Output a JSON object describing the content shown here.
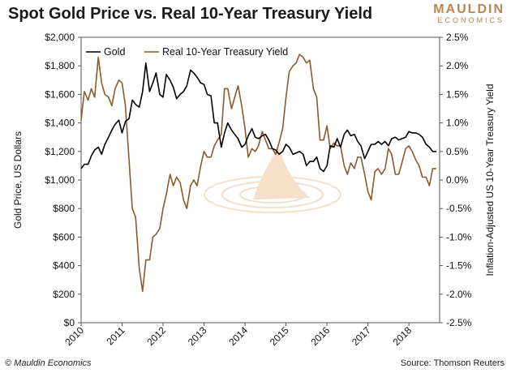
{
  "header": {
    "title": "Spot Gold Price vs. Real 10-Year Treasury Yield",
    "logo_main": "MAULDIN",
    "logo_sub": "ECONOMICS"
  },
  "footer": {
    "credit": "© Mauldin Economics",
    "source": "Source: Thomson Reuters"
  },
  "chart_data": {
    "type": "line",
    "title": "Spot Gold Price vs. Real 10-Year Treasury Yield",
    "xlabel": "",
    "ylabel": "Gold Price, US Dollars",
    "ylabel_right": "Inflation-Adjusted US 10-Year Treasury Yield",
    "xlim": [
      2010,
      2018.75
    ],
    "ylim": [
      0,
      2000
    ],
    "ylim_right": [
      -2.5,
      2.5
    ],
    "x_ticks": [
      "2010",
      "2011",
      "2012",
      "2013",
      "2014",
      "2015",
      "2016",
      "2017",
      "2018"
    ],
    "y_ticks": [
      "$0",
      "$200",
      "$400",
      "$600",
      "$800",
      "$1,000",
      "$1,200",
      "$1,400",
      "$1,600",
      "$1,800",
      "$2,000"
    ],
    "y_ticks_right": [
      "-2.5%",
      "-2.0%",
      "-1.5%",
      "-1.0%",
      "-0.5%",
      "0.0%",
      "0.5%",
      "1.0%",
      "1.5%",
      "2.0%",
      "2.5%"
    ],
    "legend_position": "top-left",
    "grid": false,
    "series": [
      {
        "name": "Gold",
        "axis": "left",
        "color": "#000000",
        "x": [
          2010.0,
          2010.08,
          2010.17,
          2010.25,
          2010.33,
          2010.42,
          2010.5,
          2010.58,
          2010.67,
          2010.75,
          2010.83,
          2010.92,
          2011.0,
          2011.08,
          2011.17,
          2011.25,
          2011.33,
          2011.42,
          2011.5,
          2011.58,
          2011.67,
          2011.75,
          2011.83,
          2011.92,
          2012.0,
          2012.08,
          2012.17,
          2012.25,
          2012.33,
          2012.42,
          2012.5,
          2012.58,
          2012.67,
          2012.75,
          2012.83,
          2012.92,
          2013.0,
          2013.08,
          2013.17,
          2013.25,
          2013.33,
          2013.42,
          2013.5,
          2013.58,
          2013.67,
          2013.75,
          2013.83,
          2013.92,
          2014.0,
          2014.08,
          2014.17,
          2014.25,
          2014.33,
          2014.42,
          2014.5,
          2014.58,
          2014.67,
          2014.75,
          2014.83,
          2014.92,
          2015.0,
          2015.08,
          2015.17,
          2015.25,
          2015.33,
          2015.42,
          2015.5,
          2015.58,
          2015.67,
          2015.75,
          2015.83,
          2015.92,
          2016.0,
          2016.08,
          2016.17,
          2016.25,
          2016.33,
          2016.42,
          2016.5,
          2016.58,
          2016.67,
          2016.75,
          2016.83,
          2016.92,
          2017.0,
          2017.08,
          2017.17,
          2017.25,
          2017.33,
          2017.42,
          2017.5,
          2017.58,
          2017.67,
          2017.75,
          2017.83,
          2017.92,
          2018.0,
          2018.08,
          2018.17,
          2018.25,
          2018.33,
          2018.42,
          2018.5,
          2018.58,
          2018.67
        ],
        "values": [
          1080,
          1110,
          1110,
          1170,
          1210,
          1230,
          1180,
          1250,
          1300,
          1350,
          1390,
          1420,
          1330,
          1410,
          1430,
          1560,
          1530,
          1510,
          1620,
          1820,
          1620,
          1680,
          1750,
          1600,
          1580,
          1740,
          1700,
          1650,
          1570,
          1600,
          1620,
          1660,
          1770,
          1750,
          1720,
          1680,
          1670,
          1600,
          1590,
          1400,
          1400,
          1230,
          1330,
          1400,
          1350,
          1320,
          1290,
          1230,
          1250,
          1310,
          1360,
          1300,
          1290,
          1310,
          1320,
          1280,
          1220,
          1210,
          1180,
          1200,
          1250,
          1230,
          1180,
          1190,
          1200,
          1180,
          1100,
          1130,
          1130,
          1160,
          1080,
          1060,
          1100,
          1240,
          1230,
          1290,
          1230,
          1320,
          1350,
          1310,
          1320,
          1270,
          1240,
          1150,
          1200,
          1250,
          1250,
          1270,
          1250,
          1270,
          1240,
          1290,
          1300,
          1280,
          1290,
          1300,
          1340,
          1330,
          1330,
          1320,
          1300,
          1250,
          1230,
          1200,
          1200
        ]
      },
      {
        "name": "Real 10-Year Treasury Yield",
        "axis": "right",
        "color": "#8b5a2b",
        "x": [
          2010.0,
          2010.08,
          2010.17,
          2010.25,
          2010.33,
          2010.42,
          2010.5,
          2010.58,
          2010.67,
          2010.75,
          2010.83,
          2010.92,
          2011.0,
          2011.08,
          2011.17,
          2011.25,
          2011.33,
          2011.42,
          2011.5,
          2011.58,
          2011.67,
          2011.75,
          2011.83,
          2011.92,
          2012.0,
          2012.08,
          2012.17,
          2012.25,
          2012.33,
          2012.42,
          2012.5,
          2012.58,
          2012.67,
          2012.75,
          2012.83,
          2012.92,
          2013.0,
          2013.08,
          2013.17,
          2013.25,
          2013.33,
          2013.42,
          2013.5,
          2013.58,
          2013.67,
          2013.75,
          2013.83,
          2013.92,
          2014.0,
          2014.08,
          2014.17,
          2014.25,
          2014.33,
          2014.42,
          2014.5,
          2014.58,
          2014.67,
          2014.75,
          2014.83,
          2014.92,
          2015.0,
          2015.08,
          2015.17,
          2015.25,
          2015.33,
          2015.42,
          2015.5,
          2015.58,
          2015.67,
          2015.75,
          2015.83,
          2015.92,
          2016.0,
          2016.08,
          2016.17,
          2016.25,
          2016.33,
          2016.42,
          2016.5,
          2016.58,
          2016.67,
          2016.75,
          2016.83,
          2016.92,
          2017.0,
          2017.08,
          2017.17,
          2017.25,
          2017.33,
          2017.42,
          2017.5,
          2017.58,
          2017.67,
          2017.75,
          2017.83,
          2017.92,
          2018.0,
          2018.08,
          2018.17,
          2018.25,
          2018.33,
          2018.42,
          2018.5,
          2018.58,
          2018.67
        ],
        "values": [
          1.05,
          1.55,
          1.4,
          1.6,
          1.45,
          2.15,
          1.7,
          1.5,
          1.45,
          1.3,
          1.6,
          1.75,
          1.7,
          1.3,
          0.35,
          -0.5,
          -0.65,
          -1.55,
          -1.95,
          -1.4,
          -1.4,
          -1.0,
          -0.95,
          -0.85,
          -0.5,
          -0.25,
          0.1,
          -0.1,
          0.05,
          -0.05,
          -0.35,
          -0.5,
          -0.1,
          0.0,
          -0.1,
          0.25,
          0.5,
          0.4,
          0.4,
          0.6,
          0.7,
          0.8,
          1.6,
          1.6,
          1.25,
          1.45,
          1.65,
          1.3,
          0.9,
          0.4,
          0.55,
          0.5,
          0.6,
          0.85,
          0.7,
          0.55,
          0.55,
          0.45,
          0.65,
          0.9,
          1.45,
          1.9,
          2.0,
          2.05,
          2.2,
          2.15,
          2.05,
          2.1,
          1.6,
          1.45,
          0.7,
          0.7,
          0.95,
          0.55,
          0.65,
          0.6,
          0.6,
          0.25,
          0.1,
          0.3,
          0.2,
          0.4,
          0.4,
          0.1,
          -0.2,
          -0.35,
          0.15,
          0.2,
          0.1,
          0.2,
          0.55,
          0.45,
          0.1,
          0.1,
          0.3,
          0.55,
          0.6,
          0.5,
          0.35,
          0.25,
          0.05,
          0.05,
          -0.1,
          0.2,
          0.2
        ]
      }
    ]
  }
}
